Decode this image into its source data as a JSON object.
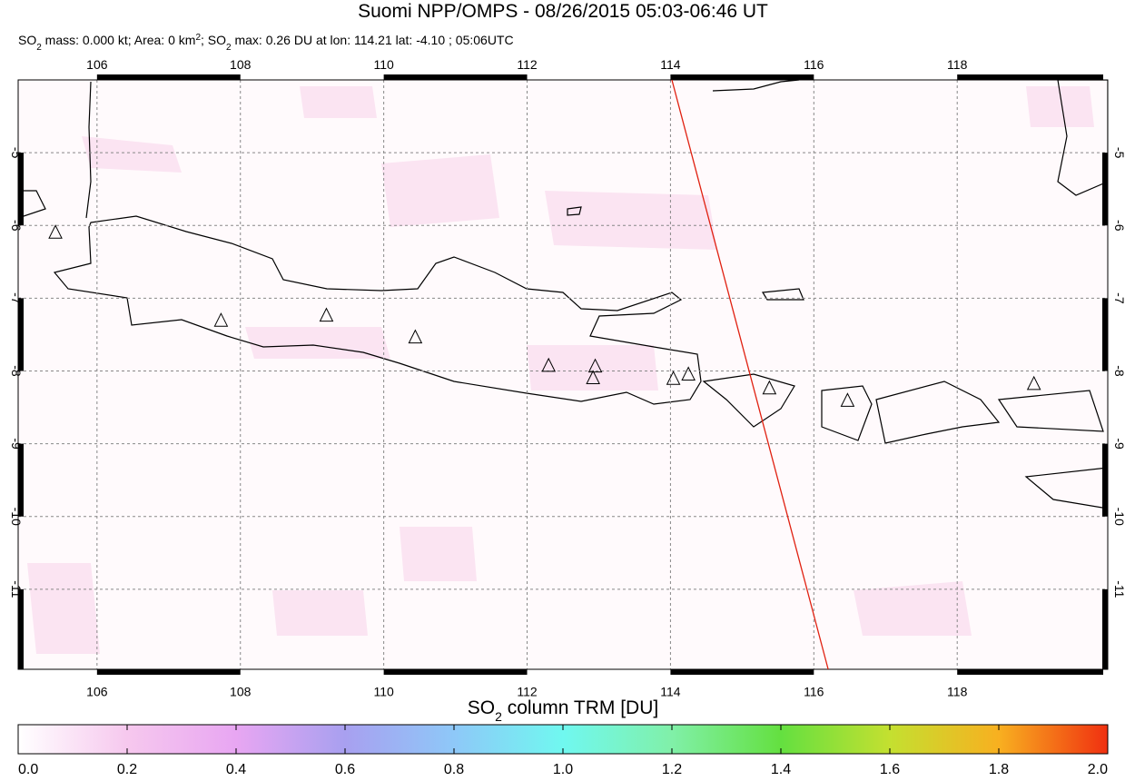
{
  "header": {
    "title": "Suomi NPP/OMPS - 08/26/2015 05:03-06:46 UT",
    "subtitle": [
      "SO",
      "2",
      " mass: 0.000 kt; Area: 0 km",
      "2",
      "; SO",
      "2",
      " max: 0.26 DU at lon: 114.21 lat: -4.10 ; 05:06UTC"
    ]
  },
  "map": {
    "type": "map",
    "xlim": [
      104.9,
      120.1
    ],
    "ylim": [
      -12.1,
      -4.0
    ],
    "xticks": [
      106,
      108,
      110,
      112,
      114,
      116,
      118
    ],
    "yticks": [
      -5,
      -6,
      -7,
      -8,
      -9,
      -10,
      -11
    ],
    "grid": true,
    "volcanoes": {
      "lon": [
        105.42,
        107.73,
        109.2,
        110.44,
        112.3,
        112.95,
        112.92,
        114.04,
        114.25,
        115.38,
        116.47,
        119.07
      ],
      "lat": [
        -6.1,
        -7.31,
        -7.24,
        -7.54,
        -7.93,
        -7.94,
        -8.1,
        -8.11,
        -8.05,
        -8.24,
        -8.41,
        -8.18
      ]
    },
    "track": {
      "lon": [
        114.02,
        116.2
      ],
      "lat": [
        -4.0,
        -12.1
      ],
      "color": "#e02010"
    }
  },
  "colorbar": {
    "label": [
      "SO",
      "2",
      " column TRM [DU]"
    ],
    "lim": [
      0,
      2
    ],
    "ticks": [
      {
        "value": 0,
        "label": "0.0"
      },
      0.2,
      0.4,
      0.6,
      0.8,
      {
        "value": 1,
        "label": "1.0"
      },
      1.2,
      1.4,
      1.6,
      1.8,
      {
        "value": 2,
        "label": "2.0"
      }
    ],
    "colors": [
      "#ffffff",
      "#f6c8ee",
      "#e8a6f2",
      "#a8a0f0",
      "#8ec8f8",
      "#70f8f0",
      "#80f0a8",
      "#64e040",
      "#c4e030",
      "#f8b020",
      "#f03010"
    ]
  }
}
